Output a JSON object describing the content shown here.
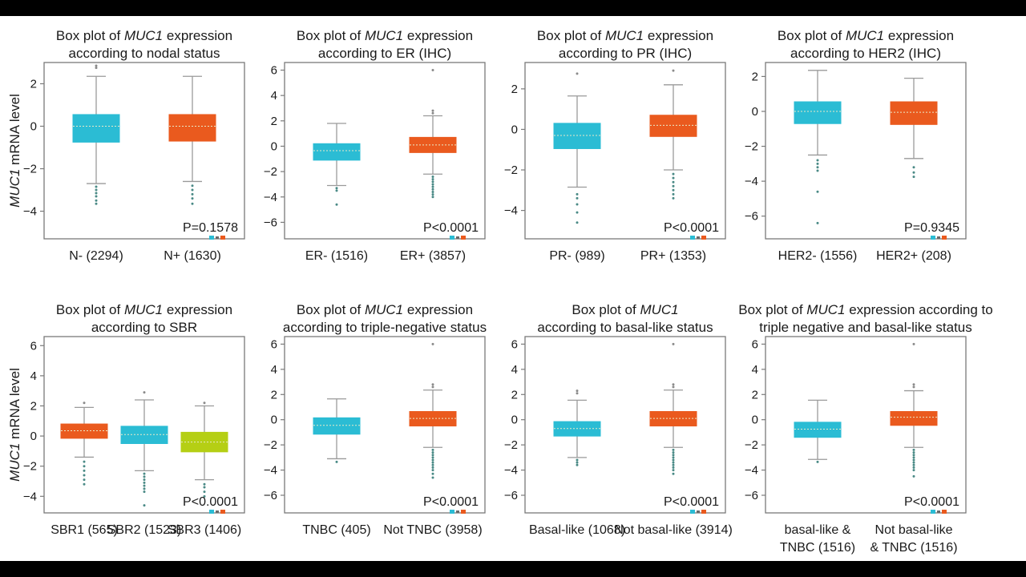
{
  "y_axis_label": {
    "gene": "MUC1",
    "rest": " mRNA level"
  },
  "colors": {
    "cyan": "#2bbcd4",
    "orange": "#ea5a1e",
    "lime": "#b5cf14",
    "whisker": "#9a9a9a",
    "frame": "#7a7a7a",
    "median": "#e9e9c8"
  },
  "chart_data": [
    {
      "type": "box",
      "title": {
        "line1_pre": "Box plot of ",
        "line1_gene": "MUC1",
        "line1_post": " expression",
        "line2": "according to nodal status"
      },
      "ylim": [
        -5.3,
        3.0
      ],
      "yticks": [
        -4,
        -2,
        0,
        2
      ],
      "p_value": "P=0.1578",
      "categories": [
        {
          "label": "N- (2294)",
          "color": "cyan",
          "whisker_low": -2.7,
          "q1": -0.75,
          "median": 0.0,
          "q3": 0.55,
          "whisker_high": 2.35,
          "outliers": [
            2.75,
            2.85,
            -2.85,
            -3.0,
            -3.15,
            -3.3,
            -3.5,
            -3.65
          ]
        },
        {
          "label": "N+ (1630)",
          "color": "orange",
          "whisker_low": -2.6,
          "q1": -0.7,
          "median": 0.0,
          "q3": 0.55,
          "whisker_high": 2.35,
          "outliers": [
            -2.8,
            -3.0,
            -3.2,
            -3.4,
            -3.65
          ]
        }
      ]
    },
    {
      "type": "box",
      "title": {
        "line1_pre": "Box plot of ",
        "line1_gene": "MUC1",
        "line1_post": " expression",
        "line2": "according to ER (IHC)"
      },
      "ylim": [
        -7.3,
        6.6
      ],
      "yticks": [
        -6,
        -4,
        -2,
        0,
        2,
        4,
        6
      ],
      "p_value": "P<0.0001",
      "categories": [
        {
          "label": "ER- (1516)",
          "color": "cyan",
          "whisker_low": -3.1,
          "q1": -1.1,
          "median": -0.35,
          "q3": 0.2,
          "whisker_high": 1.8,
          "outliers": [
            -3.3,
            -3.5,
            -4.6
          ]
        },
        {
          "label": "ER+ (3857)",
          "color": "orange",
          "whisker_low": -2.2,
          "q1": -0.5,
          "median": 0.1,
          "q3": 0.7,
          "whisker_high": 2.4,
          "outliers": [
            6.0,
            2.6,
            2.8,
            -2.4,
            -2.6,
            -2.8,
            -3.0,
            -3.2,
            -3.4,
            -3.6,
            -3.8,
            -4.0
          ]
        }
      ]
    },
    {
      "type": "box",
      "title": {
        "line1_pre": "Box plot of ",
        "line1_gene": "MUC1",
        "line1_post": " expression",
        "line2": "according to PR (IHC)"
      },
      "ylim": [
        -5.4,
        3.3
      ],
      "yticks": [
        -4,
        -2,
        0,
        2
      ],
      "p_value": "P<0.0001",
      "categories": [
        {
          "label": "PR- (989)",
          "color": "cyan",
          "whisker_low": -2.85,
          "q1": -0.95,
          "median": -0.3,
          "q3": 0.3,
          "whisker_high": 1.65,
          "outliers": [
            2.75,
            -3.2,
            -3.4,
            -3.7,
            -4.1,
            -4.6
          ]
        },
        {
          "label": "PR+ (1353)",
          "color": "orange",
          "whisker_low": -2.0,
          "q1": -0.35,
          "median": 0.2,
          "q3": 0.7,
          "whisker_high": 2.2,
          "outliers": [
            2.9,
            -2.2,
            -2.4,
            -2.6,
            -2.8,
            -3.0,
            -3.2,
            -3.4
          ]
        }
      ]
    },
    {
      "type": "box",
      "title": {
        "line1_pre": "Box plot of ",
        "line1_gene": "MUC1",
        "line1_post": " expression",
        "line2": "according to HER2 (IHC)"
      },
      "ylim": [
        -7.3,
        2.8
      ],
      "yticks": [
        -6,
        -4,
        -2,
        0,
        2
      ],
      "p_value": "P=0.9345",
      "categories": [
        {
          "label": "HER2- (1556)",
          "color": "cyan",
          "whisker_low": -2.5,
          "q1": -0.7,
          "median": 0.0,
          "q3": 0.55,
          "whisker_high": 2.35,
          "outliers": [
            -2.8,
            -3.0,
            -3.2,
            -3.4,
            -4.6,
            -6.4
          ]
        },
        {
          "label": "HER2+ (208)",
          "color": "orange",
          "whisker_low": -2.7,
          "q1": -0.75,
          "median": -0.05,
          "q3": 0.55,
          "whisker_high": 1.9,
          "outliers": [
            -3.2,
            -3.5,
            -3.75
          ]
        }
      ]
    },
    {
      "type": "box",
      "title": {
        "line1_pre": "Box plot of ",
        "line1_gene": "MUC1",
        "line1_post": " expression",
        "line2": "according to SBR"
      },
      "ylim": [
        -5.1,
        6.6
      ],
      "yticks": [
        -4,
        -2,
        0,
        2,
        4,
        6
      ],
      "p_value": "P<0.0001",
      "categories": [
        {
          "label": "SBR1 (565)",
          "color": "orange",
          "whisker_low": -1.4,
          "q1": -0.15,
          "median": 0.35,
          "q3": 0.8,
          "whisker_high": 1.9,
          "outliers": [
            2.2,
            -1.7,
            -2.0,
            -2.3,
            -2.6,
            -2.9,
            -3.2
          ]
        },
        {
          "label": "SBR2 (1523)",
          "color": "cyan",
          "whisker_low": -2.3,
          "q1": -0.5,
          "median": 0.1,
          "q3": 0.65,
          "whisker_high": 2.4,
          "outliers": [
            2.9,
            -2.5,
            -2.7,
            -2.9,
            -3.1,
            -3.3,
            -3.5,
            -3.7,
            -4.6
          ]
        },
        {
          "label": "SBR3 (1406)",
          "color": "lime",
          "whisker_low": -2.9,
          "q1": -1.05,
          "median": -0.4,
          "q3": 0.25,
          "whisker_high": 2.0,
          "outliers": [
            2.2,
            -3.2,
            -3.4,
            -3.7,
            -4.0
          ]
        }
      ]
    },
    {
      "type": "box",
      "title": {
        "line1_pre": "Box plot of ",
        "line1_gene": "MUC1",
        "line1_post": " expression",
        "line2": "according to triple-negative status"
      },
      "ylim": [
        -7.4,
        6.6
      ],
      "yticks": [
        -6,
        -4,
        -2,
        0,
        2,
        4,
        6
      ],
      "p_value": "P<0.0001",
      "categories": [
        {
          "label": "TNBC (405)",
          "color": "cyan",
          "whisker_low": -3.1,
          "q1": -1.15,
          "median": -0.45,
          "q3": 0.15,
          "whisker_high": 1.65,
          "outliers": [
            -3.35
          ]
        },
        {
          "label": "Not TNBC (3958)",
          "color": "orange",
          "whisker_low": -2.2,
          "q1": -0.5,
          "median": 0.1,
          "q3": 0.65,
          "whisker_high": 2.35,
          "outliers": [
            6.0,
            2.6,
            2.8,
            -2.4,
            -2.6,
            -2.8,
            -3.0,
            -3.2,
            -3.4,
            -3.6,
            -3.8,
            -4.0,
            -4.3,
            -4.6
          ]
        }
      ]
    },
    {
      "type": "box",
      "title": {
        "line1_pre": "Box plot of ",
        "line1_gene": "MUC1",
        "line1_post": "",
        "line2": "according to basal-like status"
      },
      "ylim": [
        -7.4,
        6.6
      ],
      "yticks": [
        -6,
        -4,
        -2,
        0,
        2,
        4,
        6
      ],
      "p_value": "P<0.0001",
      "categories": [
        {
          "label": "Basal-like (1068)",
          "color": "cyan",
          "whisker_low": -3.0,
          "q1": -1.3,
          "median": -0.7,
          "q3": -0.15,
          "whisker_high": 1.55,
          "outliers": [
            2.1,
            2.3,
            -3.2,
            -3.4,
            -3.6
          ]
        },
        {
          "label": "Not basal-like (3914)",
          "color": "orange",
          "whisker_low": -2.2,
          "q1": -0.5,
          "median": 0.1,
          "q3": 0.65,
          "whisker_high": 2.35,
          "outliers": [
            6.0,
            2.6,
            2.8,
            -2.4,
            -2.6,
            -2.8,
            -3.0,
            -3.2,
            -3.4,
            -3.6,
            -3.8,
            -4.0,
            -4.3
          ]
        }
      ]
    },
    {
      "type": "box",
      "title": {
        "line1_pre": "Box plot of ",
        "line1_gene": "MUC1",
        "line1_post": " expression according to",
        "line2": "triple negative and basal-like status"
      },
      "ylim": [
        -7.4,
        6.6
      ],
      "yticks": [
        -6,
        -4,
        -2,
        0,
        2,
        4,
        6
      ],
      "p_value": "P<0.0001",
      "categories": [
        {
          "label": "basal-like &",
          "label2": "TNBC (1516)",
          "color": "cyan",
          "whisker_low": -3.15,
          "q1": -1.4,
          "median": -0.75,
          "q3": -0.2,
          "whisker_high": 1.55,
          "outliers": [
            -3.35
          ]
        },
        {
          "label": "Not basal-like",
          "label2": "& TNBC (1516)",
          "color": "orange",
          "whisker_low": -2.2,
          "q1": -0.45,
          "median": 0.2,
          "q3": 0.65,
          "whisker_high": 2.3,
          "outliers": [
            6.0,
            2.6,
            2.8,
            -2.4,
            -2.6,
            -2.8,
            -3.0,
            -3.2,
            -3.4,
            -3.6,
            -3.8,
            -4.0,
            -4.5
          ]
        }
      ]
    }
  ]
}
